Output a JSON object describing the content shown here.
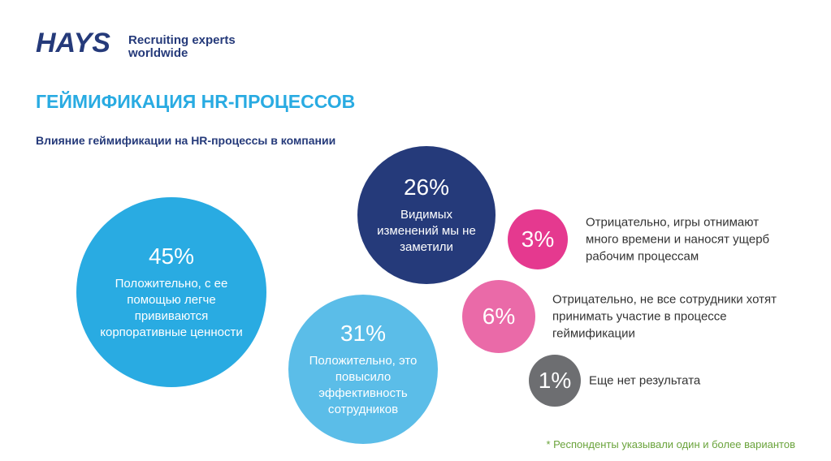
{
  "header": {
    "logo": "HAYS",
    "tagline": [
      "Recruiting experts",
      "worldwide"
    ]
  },
  "chart_data": {
    "type": "bubble",
    "title": "ГЕЙМИФИКАЦИЯ HR-ПРОЦЕССОВ",
    "subtitle": "Влияние геймификации на HR-процессы в компании",
    "categories": [
      "Положительно, с ее помощью легче прививаются корпоративные ценности",
      "Положительно, это повысило эффективность сотрудников",
      "Видимых изменений мы не заметили",
      "Отрицательно, игры отнимают много времени и наносят ущерб рабочим процессам",
      "Отрицательно, не все сотрудники хотят принимать участие в процессе геймификации",
      "Еще нет результата"
    ],
    "values": [
      45,
      31,
      26,
      3,
      6,
      1
    ],
    "value_labels": [
      "45%",
      "31%",
      "26%",
      "3%",
      "6%",
      "1%"
    ],
    "colors": [
      "#29abe2",
      "#5bbde8",
      "#253a7a",
      "#e5398f",
      "#ea6aa8",
      "#6d6e71"
    ],
    "footnote": "* Респонденты указывали один и более вариантов"
  }
}
